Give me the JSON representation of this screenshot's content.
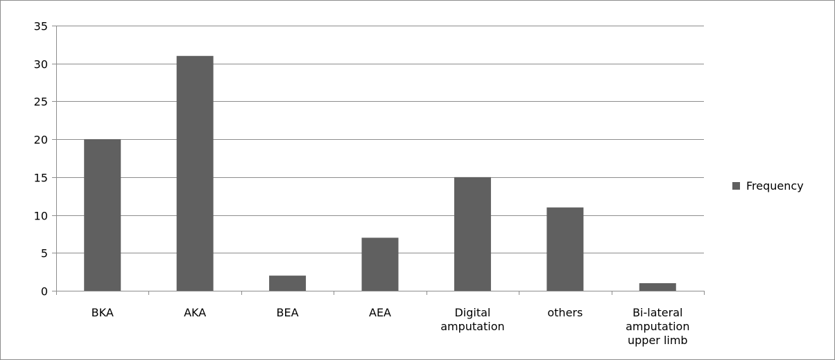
{
  "chart_data": {
    "type": "bar",
    "title": "",
    "xlabel": "",
    "ylabel": "",
    "categories": [
      [
        "BKA"
      ],
      [
        "AKA"
      ],
      [
        "BEA"
      ],
      [
        "AEA"
      ],
      [
        "Digital",
        "amputation"
      ],
      [
        "others"
      ],
      [
        "Bi-lateral",
        "amputation",
        "upper limb"
      ]
    ],
    "series": [
      {
        "name": "Frequency",
        "values": [
          20,
          31,
          2,
          7,
          15,
          11,
          1
        ],
        "color": "#606060"
      }
    ],
    "ylim": [
      0,
      35
    ],
    "yticks": [
      0,
      5,
      10,
      15,
      20,
      25,
      30,
      35
    ],
    "grid": true,
    "legend": "right"
  }
}
